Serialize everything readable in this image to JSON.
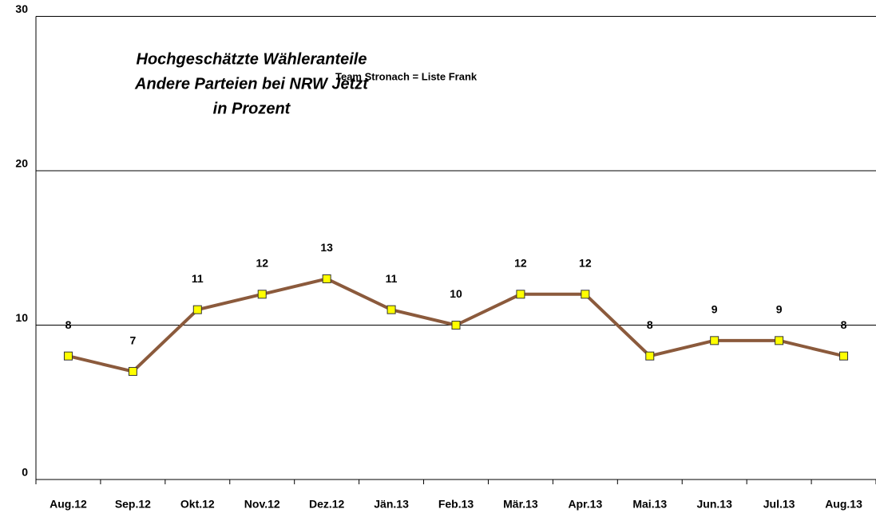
{
  "chart_data": {
    "type": "line",
    "title": [
      "Hochgeschätzte Wähleranteile",
      "Andere Parteien bei NRW Jetzt",
      "in Prozent"
    ],
    "annotation": "Team  Stronach = Liste Frank",
    "categories": [
      "Aug.12",
      "Sep.12",
      "Okt.12",
      "Nov.12",
      "Dez.12",
      "Jän.13",
      "Feb.13",
      "Mär.13",
      "Apr.13",
      "Mai.13",
      "Jun.13",
      "Jul.13",
      "Aug.13"
    ],
    "series": [
      {
        "color": "#8b5a3c",
        "marker_color": "#ffff00",
        "values": [
          8,
          7,
          11,
          12,
          13,
          11,
          10,
          12,
          12,
          8,
          9,
          9,
          8
        ]
      }
    ],
    "ylim": [
      0,
      30
    ],
    "yticks": [
      0,
      10,
      20,
      30
    ],
    "grid": true
  }
}
